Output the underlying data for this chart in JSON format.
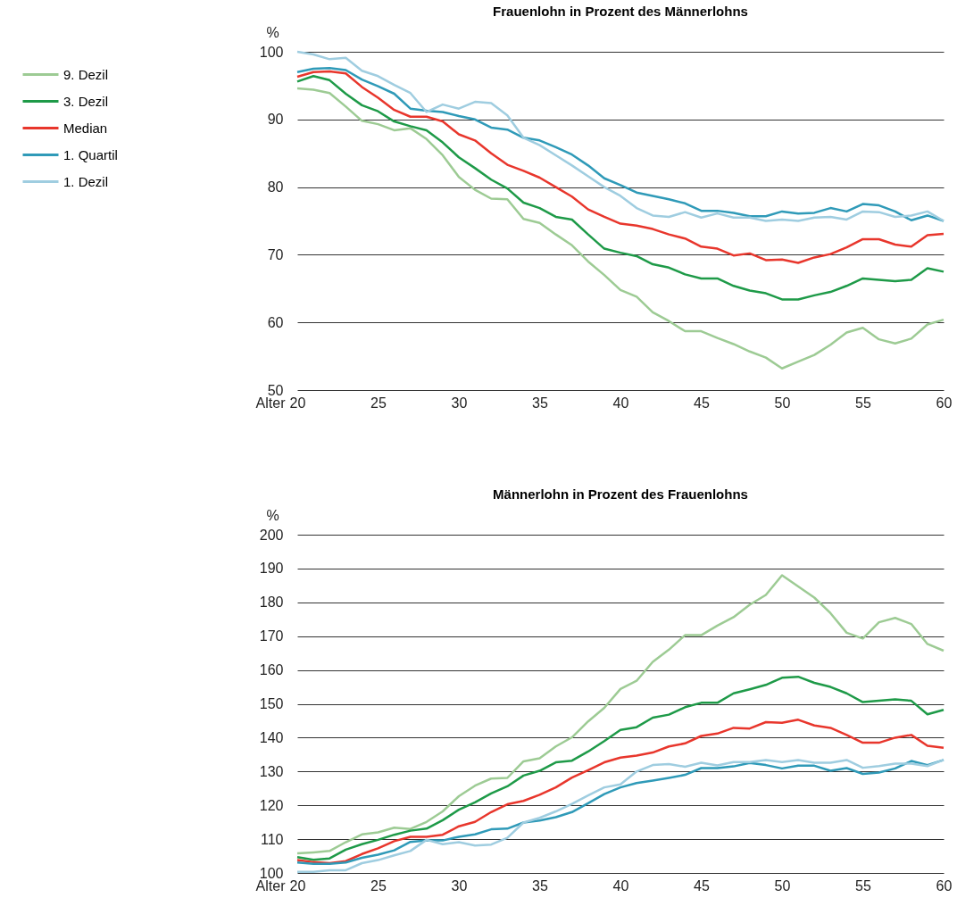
{
  "chart_data": [
    {
      "type": "line",
      "title": "Frauenlohn in Prozent des Männerlohns",
      "xlabel": "Alter",
      "ylabel": "%",
      "x": [
        20,
        21,
        22,
        23,
        24,
        25,
        26,
        27,
        28,
        29,
        30,
        31,
        32,
        33,
        34,
        35,
        36,
        37,
        38,
        39,
        40,
        41,
        42,
        43,
        44,
        45,
        46,
        47,
        48,
        49,
        50,
        51,
        52,
        53,
        54,
        55,
        56,
        57,
        58,
        59,
        60
      ],
      "xlim": [
        20,
        60
      ],
      "xticks": [
        20,
        25,
        30,
        35,
        40,
        45,
        50,
        55,
        60
      ],
      "ylim": [
        50,
        100
      ],
      "yticks": [
        50,
        60,
        70,
        80,
        90,
        100
      ],
      "grid": "y",
      "legend": "left",
      "series": [
        {
          "name": "9. Dezil",
          "color": "#9dcb94",
          "values": [
            94.6,
            94.4,
            93.9,
            91.9,
            89.8,
            89.3,
            88.4,
            88.7,
            87.1,
            84.7,
            81.5,
            79.6,
            78.3,
            78.2,
            75.3,
            74.7,
            73.0,
            71.4,
            69.0,
            67.0,
            64.8,
            63.8,
            61.5,
            60.2,
            58.7,
            58.7,
            57.7,
            56.8,
            55.7,
            54.8,
            53.2,
            54.2,
            55.2,
            56.7,
            58.5,
            59.2,
            57.5,
            56.9,
            57.6,
            59.7,
            60.4
          ]
        },
        {
          "name": "3. Dezil",
          "color": "#1e9a48",
          "values": [
            95.6,
            96.4,
            95.8,
            93.8,
            92.1,
            91.2,
            89.7,
            89.0,
            88.4,
            86.6,
            84.4,
            82.8,
            81.1,
            79.8,
            77.7,
            76.9,
            75.6,
            75.2,
            73.0,
            70.9,
            70.3,
            69.8,
            68.6,
            68.1,
            67.1,
            66.5,
            66.5,
            65.4,
            64.7,
            64.3,
            63.4,
            63.4,
            64.0,
            64.5,
            65.4,
            66.5,
            66.3,
            66.1,
            66.3,
            68.0,
            67.5
          ]
        },
        {
          "name": "Median",
          "color": "#e8362c",
          "values": [
            96.3,
            97.0,
            97.1,
            96.8,
            94.8,
            93.2,
            91.4,
            90.4,
            90.4,
            89.7,
            87.8,
            86.9,
            85.0,
            83.3,
            82.4,
            81.4,
            80.0,
            78.6,
            76.7,
            75.6,
            74.6,
            74.3,
            73.8,
            73.0,
            72.4,
            71.2,
            70.9,
            69.9,
            70.2,
            69.2,
            69.3,
            68.8,
            69.6,
            70.1,
            71.1,
            72.3,
            72.3,
            71.5,
            71.2,
            72.9,
            73.1
          ]
        },
        {
          "name": "1. Quartil",
          "color": "#2f9ab8",
          "values": [
            97.0,
            97.5,
            97.6,
            97.3,
            95.9,
            94.9,
            93.8,
            91.6,
            91.3,
            91.1,
            90.5,
            90.0,
            88.8,
            88.5,
            87.3,
            86.9,
            85.9,
            84.8,
            83.2,
            81.3,
            80.3,
            79.2,
            78.7,
            78.2,
            77.6,
            76.5,
            76.5,
            76.2,
            75.7,
            75.7,
            76.4,
            76.1,
            76.2,
            76.9,
            76.4,
            77.5,
            77.3,
            76.4,
            75.1,
            75.8,
            75.0
          ]
        },
        {
          "name": "1. Dezil",
          "color": "#9fcde0",
          "values": [
            100.0,
            99.6,
            98.9,
            99.1,
            97.2,
            96.4,
            95.1,
            93.9,
            91.1,
            92.2,
            91.6,
            92.6,
            92.4,
            90.6,
            87.3,
            86.2,
            84.7,
            83.2,
            81.6,
            80.0,
            78.7,
            76.9,
            75.8,
            75.6,
            76.3,
            75.5,
            76.1,
            75.5,
            75.5,
            75.0,
            75.2,
            75.0,
            75.5,
            75.6,
            75.2,
            76.4,
            76.3,
            75.6,
            75.8,
            76.4,
            75.0
          ]
        }
      ]
    },
    {
      "type": "line",
      "title": "Männerlohn in Prozent des Frauenlohns",
      "xlabel": "Alter",
      "ylabel": "%",
      "x": [
        20,
        21,
        22,
        23,
        24,
        25,
        26,
        27,
        28,
        29,
        30,
        31,
        32,
        33,
        34,
        35,
        36,
        37,
        38,
        39,
        40,
        41,
        42,
        43,
        44,
        45,
        46,
        47,
        48,
        49,
        50,
        51,
        52,
        53,
        54,
        55,
        56,
        57,
        58,
        59,
        60
      ],
      "xlim": [
        20,
        60
      ],
      "xticks": [
        20,
        25,
        30,
        35,
        40,
        45,
        50,
        55,
        60
      ],
      "ylim": [
        100,
        200
      ],
      "yticks": [
        100,
        110,
        120,
        130,
        140,
        150,
        160,
        170,
        180,
        190,
        200
      ],
      "grid": "y",
      "legend": false,
      "series": [
        {
          "name": "9. Dezil",
          "color": "#9dcb94",
          "values": [
            105.8,
            106.1,
            106.5,
            109.1,
            111.4,
            112.0,
            113.4,
            113.0,
            115.1,
            118.2,
            122.7,
            125.8,
            127.9,
            128.1,
            133.0,
            133.9,
            137.4,
            140.1,
            144.8,
            148.8,
            154.4,
            156.8,
            162.4,
            166.0,
            170.3,
            170.3,
            173.1,
            175.6,
            179.3,
            182.2,
            188.0,
            184.7,
            181.4,
            176.8,
            171.0,
            169.3,
            174.1,
            175.4,
            173.6,
            167.7,
            165.7
          ]
        },
        {
          "name": "3. Dezil",
          "color": "#1e9a48",
          "values": [
            104.7,
            103.9,
            104.3,
            106.9,
            108.5,
            109.8,
            111.3,
            112.5,
            113.1,
            115.6,
            118.7,
            120.9,
            123.5,
            125.6,
            128.8,
            130.2,
            132.7,
            133.2,
            135.9,
            139.0,
            142.3,
            143.1,
            145.9,
            146.8,
            149.0,
            150.3,
            150.3,
            153.1,
            154.3,
            155.6,
            157.7,
            158.0,
            156.2,
            155.0,
            153.1,
            150.5,
            150.9,
            151.3,
            150.9,
            146.9,
            148.2
          ]
        },
        {
          "name": "Median",
          "color": "#e8362c",
          "values": [
            103.8,
            103.2,
            102.9,
            103.5,
            105.6,
            107.3,
            109.4,
            110.7,
            110.7,
            111.3,
            113.8,
            115.1,
            118.0,
            120.3,
            121.3,
            123.1,
            125.3,
            128.2,
            130.4,
            132.7,
            134.1,
            134.7,
            135.6,
            137.4,
            138.3,
            140.5,
            141.2,
            142.9,
            142.7,
            144.6,
            144.4,
            145.3,
            143.6,
            142.9,
            140.8,
            138.5,
            138.5,
            140.0,
            140.8,
            137.6,
            137.0
          ]
        },
        {
          "name": "1. Quartil",
          "color": "#2f9ab8",
          "values": [
            103.1,
            102.7,
            102.7,
            103.1,
            104.5,
            105.4,
            106.7,
            109.2,
            109.6,
            109.6,
            110.7,
            111.4,
            112.9,
            113.1,
            114.9,
            115.5,
            116.5,
            118.0,
            120.6,
            123.3,
            125.3,
            126.6,
            127.3,
            128.1,
            129.0,
            131.0,
            131.0,
            131.5,
            132.5,
            131.9,
            130.9,
            131.7,
            131.7,
            130.2,
            131.0,
            129.3,
            129.7,
            130.9,
            133.1,
            131.9,
            133.4
          ]
        },
        {
          "name": "1. Dezil",
          "color": "#9fcde0",
          "values": [
            100.3,
            100.3,
            100.8,
            100.8,
            102.9,
            103.8,
            105.2,
            106.5,
            109.8,
            108.5,
            109.1,
            108.1,
            108.4,
            110.4,
            114.9,
            116.3,
            118.2,
            120.4,
            122.9,
            125.3,
            126.2,
            130.0,
            131.9,
            132.2,
            131.4,
            132.6,
            131.8,
            132.8,
            132.8,
            133.4,
            132.8,
            133.4,
            132.6,
            132.6,
            133.4,
            131.1,
            131.6,
            132.3,
            132.3,
            131.6,
            133.4
          ]
        }
      ]
    }
  ]
}
